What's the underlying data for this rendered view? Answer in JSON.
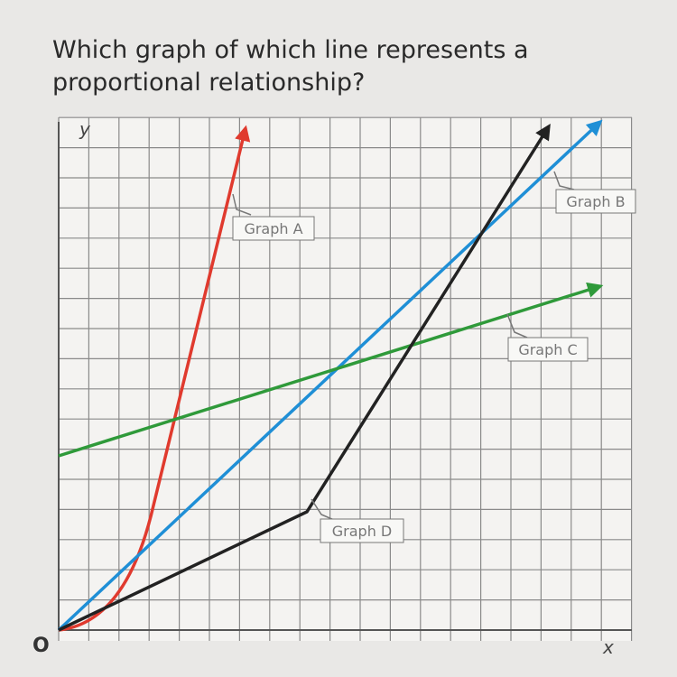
{
  "question": "Which graph of which line represents a proportional relationship?",
  "axes": {
    "y": "y",
    "x": "x",
    "origin": "O"
  },
  "labels": {
    "a": "Graph A",
    "b": "Graph B",
    "c": "Graph C",
    "d": "Graph D"
  }
}
